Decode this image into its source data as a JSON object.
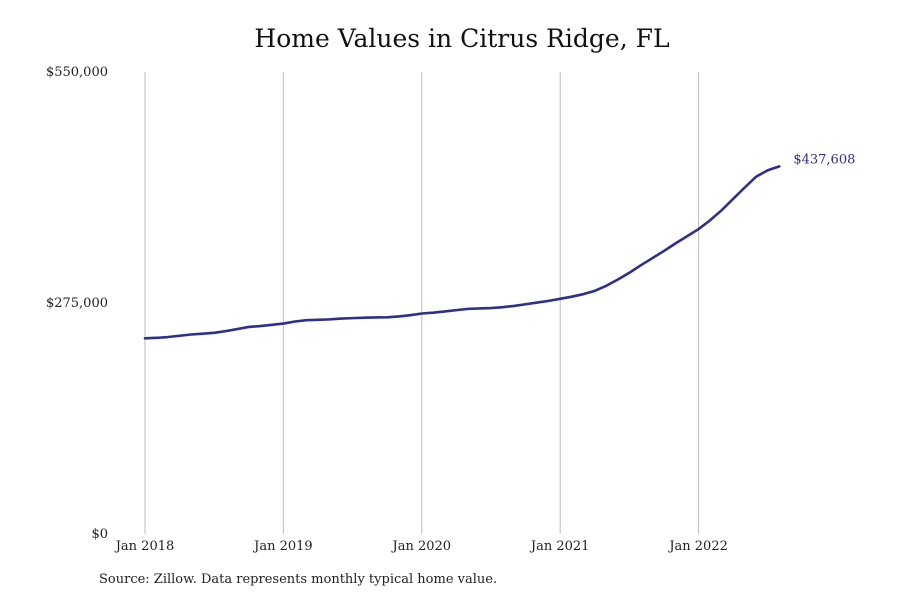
{
  "chart_data": {
    "type": "line",
    "title": "Home Values in Citrus Ridge, FL",
    "xlabel": "",
    "ylabel": "",
    "x_ticks": [
      "Jan 2018",
      "Jan 2019",
      "Jan 2020",
      "Jan 2021",
      "Jan 2022"
    ],
    "y_ticks": [
      "$0",
      "$275,000",
      "$550,000"
    ],
    "ylim": [
      0,
      550000
    ],
    "xlim": [
      "2018-01",
      "2022-08"
    ],
    "grid": "vertical",
    "legend": "none",
    "end_label": "$437,608",
    "line_color": "#2e2e8f",
    "series": [
      {
        "x": [
          "2018-01",
          "2018-02",
          "2018-03",
          "2018-04",
          "2018-05",
          "2018-06",
          "2018-07",
          "2018-08",
          "2018-09",
          "2018-10",
          "2018-11",
          "2018-12",
          "2019-01",
          "2019-02",
          "2019-03",
          "2019-04",
          "2019-05",
          "2019-06",
          "2019-07",
          "2019-08",
          "2019-09",
          "2019-10",
          "2019-11",
          "2019-12",
          "2020-01",
          "2020-02",
          "2020-03",
          "2020-04",
          "2020-05",
          "2020-06",
          "2020-07",
          "2020-08",
          "2020-09",
          "2020-10",
          "2020-11",
          "2020-12",
          "2021-01",
          "2021-02",
          "2021-03",
          "2021-04",
          "2021-05",
          "2021-06",
          "2021-07",
          "2021-08",
          "2021-09",
          "2021-10",
          "2021-11",
          "2021-12",
          "2022-01",
          "2022-02",
          "2022-03",
          "2022-04",
          "2022-05",
          "2022-06",
          "2022-07",
          "2022-08"
        ],
        "values": [
          233000,
          233500,
          234500,
          236000,
          237500,
          238500,
          239500,
          241500,
          244000,
          246500,
          247500,
          249000,
          250500,
          253000,
          254500,
          255000,
          255500,
          256500,
          257000,
          257500,
          257800,
          258000,
          259000,
          260500,
          262500,
          263500,
          265000,
          266500,
          268000,
          268500,
          269000,
          270000,
          271500,
          273500,
          275500,
          277500,
          280000,
          282500,
          285500,
          289500,
          295500,
          303000,
          311000,
          320000,
          328500,
          337000,
          346000,
          354500,
          363000,
          373500,
          385500,
          399000,
          412500,
          425500,
          433000,
          437608
        ]
      }
    ]
  },
  "source_note": "Source: Zillow. Data represents monthly typical home value."
}
